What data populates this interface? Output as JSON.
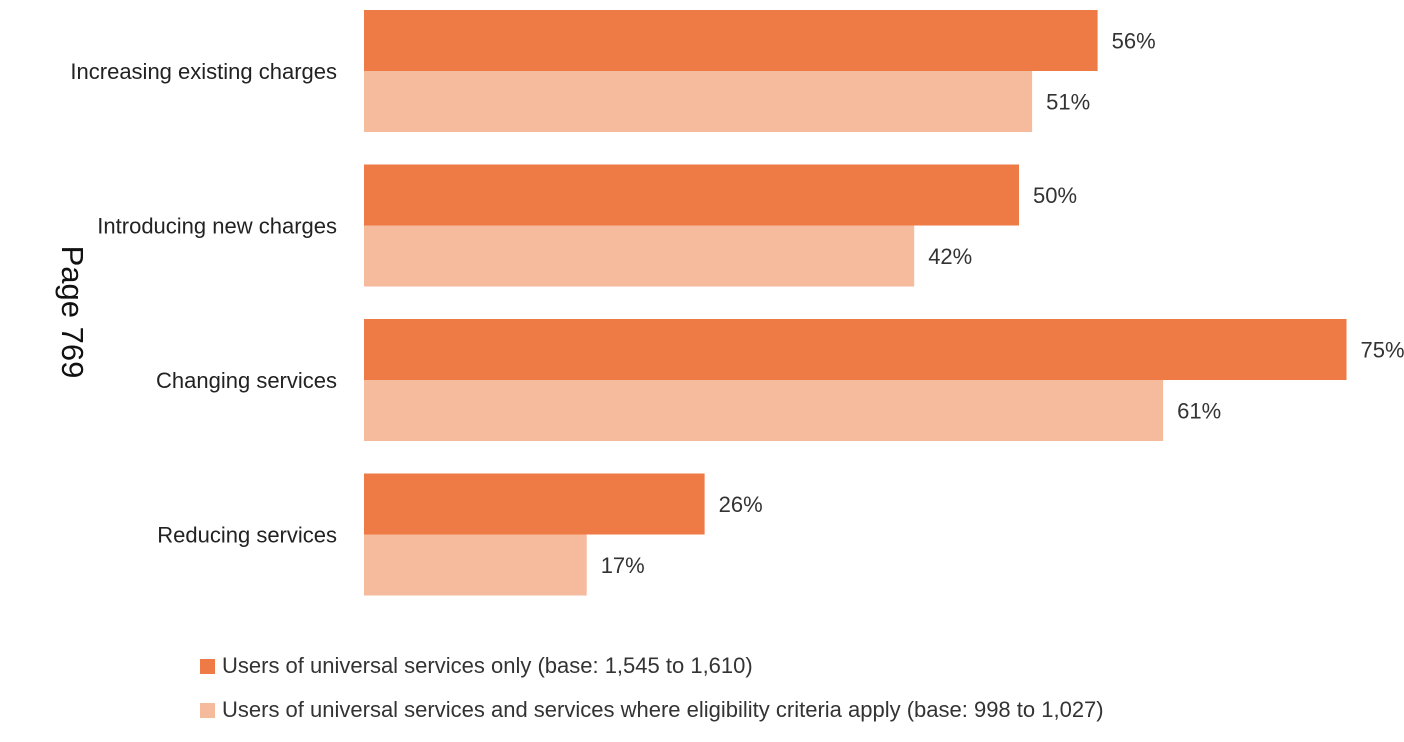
{
  "page_stamp": "Page 769",
  "chart_data": {
    "type": "bar",
    "orientation": "horizontal",
    "title": "",
    "xlabel": "",
    "ylabel": "",
    "xlim": [
      0,
      75
    ],
    "categories": [
      "Increasing existing charges",
      "Introducing new charges",
      "Changing services",
      "Reducing services"
    ],
    "series": [
      {
        "name": "Users of universal services only (base: 1,545 to 1,610)",
        "color": "#EE7A45",
        "values": [
          56,
          50,
          75,
          26
        ],
        "labels": [
          "56%",
          "50%",
          "75%",
          "26%"
        ]
      },
      {
        "name": "Users of universal services and services where eligibility criteria apply (base: 998 to 1,027)",
        "color": "#F6BA9C",
        "values": [
          51,
          42,
          61,
          17
        ],
        "labels": [
          "51%",
          "42%",
          "61%",
          "17%"
        ]
      }
    ],
    "grid": false,
    "legend_position": "bottom"
  }
}
